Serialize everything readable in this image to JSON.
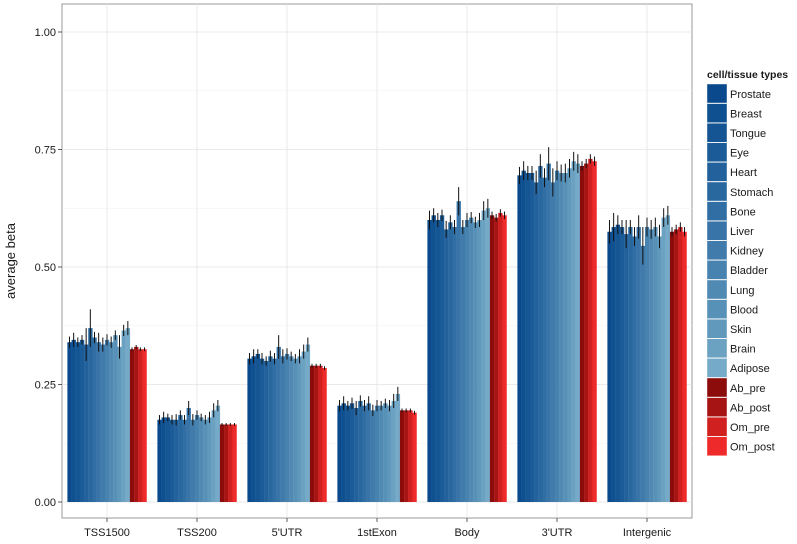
{
  "chart_data": {
    "type": "bar",
    "ylabel": "average beta",
    "xlabel": "",
    "ylim": [
      0,
      1.05
    ],
    "yticks": [
      0.0,
      0.25,
      0.5,
      0.75,
      1.0
    ],
    "ytick_labels": [
      "0.00",
      "0.25",
      "0.50",
      "0.75",
      "1.00"
    ],
    "grid": true,
    "legend": {
      "title": "cell/tissue types",
      "placement": "right"
    },
    "categories": [
      "TSS1500",
      "TSS200",
      "5'UTR",
      "1stExon",
      "Body",
      "3'UTR",
      "Intergenic"
    ],
    "series": [
      {
        "name": "Prostate",
        "color": "#0a4a8c",
        "values": [
          0.34,
          0.175,
          0.305,
          0.205,
          0.6,
          0.695,
          0.575
        ],
        "errors": [
          0.012,
          0.01,
          0.012,
          0.012,
          0.02,
          0.018,
          0.025
        ]
      },
      {
        "name": "Breast",
        "color": "#0f5090",
        "values": [
          0.345,
          0.18,
          0.31,
          0.21,
          0.61,
          0.705,
          0.585
        ],
        "errors": [
          0.015,
          0.012,
          0.015,
          0.015,
          0.015,
          0.02,
          0.03
        ]
      },
      {
        "name": "Tongue",
        "color": "#155593",
        "values": [
          0.34,
          0.18,
          0.315,
          0.205,
          0.6,
          0.7,
          0.59
        ],
        "errors": [
          0.01,
          0.008,
          0.01,
          0.01,
          0.015,
          0.015,
          0.02
        ]
      },
      {
        "name": "Eye",
        "color": "#1b5b97",
        "values": [
          0.345,
          0.175,
          0.305,
          0.21,
          0.61,
          0.7,
          0.585
        ],
        "errors": [
          0.01,
          0.01,
          0.012,
          0.012,
          0.012,
          0.015,
          0.015
        ]
      },
      {
        "name": "Heart",
        "color": "#22619b",
        "values": [
          0.335,
          0.175,
          0.3,
          0.2,
          0.58,
          0.68,
          0.57
        ],
        "errors": [
          0.035,
          0.012,
          0.01,
          0.015,
          0.018,
          0.025,
          0.03
        ]
      },
      {
        "name": "Stomach",
        "color": "#29679f",
        "values": [
          0.37,
          0.185,
          0.31,
          0.215,
          0.595,
          0.715,
          0.585
        ],
        "errors": [
          0.04,
          0.01,
          0.012,
          0.012,
          0.015,
          0.025,
          0.015
        ]
      },
      {
        "name": "Bone",
        "color": "#306ea3",
        "values": [
          0.35,
          0.175,
          0.305,
          0.205,
          0.585,
          0.69,
          0.565
        ],
        "errors": [
          0.012,
          0.01,
          0.012,
          0.012,
          0.015,
          0.02,
          0.02
        ]
      },
      {
        "name": "Liver",
        "color": "#3874a7",
        "values": [
          0.34,
          0.2,
          0.33,
          0.21,
          0.64,
          0.72,
          0.585
        ],
        "errors": [
          0.02,
          0.015,
          0.025,
          0.015,
          0.03,
          0.035,
          0.025
        ]
      },
      {
        "name": "Kidney",
        "color": "#407bab",
        "values": [
          0.335,
          0.175,
          0.31,
          0.195,
          0.585,
          0.68,
          0.545
        ],
        "errors": [
          0.015,
          0.012,
          0.015,
          0.012,
          0.015,
          0.03,
          0.04
        ]
      },
      {
        "name": "Bladder",
        "color": "#4882ae",
        "values": [
          0.345,
          0.185,
          0.315,
          0.205,
          0.6,
          0.705,
          0.585
        ],
        "errors": [
          0.012,
          0.01,
          0.012,
          0.012,
          0.015,
          0.02,
          0.02
        ]
      },
      {
        "name": "Lung",
        "color": "#5089b2",
        "values": [
          0.34,
          0.18,
          0.31,
          0.205,
          0.605,
          0.7,
          0.58
        ],
        "errors": [
          0.012,
          0.008,
          0.01,
          0.01,
          0.012,
          0.018,
          0.02
        ]
      },
      {
        "name": "Blood",
        "color": "#5891b7",
        "values": [
          0.355,
          0.175,
          0.305,
          0.21,
          0.595,
          0.7,
          0.585
        ],
        "errors": [
          0.01,
          0.01,
          0.01,
          0.01,
          0.012,
          0.02,
          0.02
        ]
      },
      {
        "name": "Skin",
        "color": "#6199bc",
        "values": [
          0.33,
          0.18,
          0.31,
          0.205,
          0.6,
          0.71,
          0.565
        ],
        "errors": [
          0.025,
          0.012,
          0.015,
          0.012,
          0.015,
          0.02,
          0.025
        ]
      },
      {
        "name": "Brain",
        "color": "#6ba2c2",
        "values": [
          0.365,
          0.195,
          0.32,
          0.215,
          0.62,
          0.725,
          0.605
        ],
        "errors": [
          0.012,
          0.015,
          0.015,
          0.015,
          0.02,
          0.02,
          0.02
        ]
      },
      {
        "name": "Adipose",
        "color": "#75aac8",
        "values": [
          0.37,
          0.205,
          0.335,
          0.23,
          0.625,
          0.72,
          0.61
        ],
        "errors": [
          0.015,
          0.012,
          0.015,
          0.015,
          0.02,
          0.02,
          0.02
        ]
      },
      {
        "name": "Ab_pre",
        "color": "#8c0c0c",
        "values": [
          0.325,
          0.165,
          0.29,
          0.195,
          0.61,
          0.715,
          0.575
        ],
        "errors": [
          0.004,
          0.003,
          0.004,
          0.004,
          0.008,
          0.01,
          0.01
        ]
      },
      {
        "name": "Ab_post",
        "color": "#a71414",
        "values": [
          0.33,
          0.165,
          0.29,
          0.195,
          0.605,
          0.72,
          0.58
        ],
        "errors": [
          0.004,
          0.003,
          0.004,
          0.004,
          0.008,
          0.01,
          0.01
        ]
      },
      {
        "name": "Om_pre",
        "color": "#d02020",
        "values": [
          0.325,
          0.165,
          0.29,
          0.195,
          0.615,
          0.73,
          0.585
        ],
        "errors": [
          0.004,
          0.003,
          0.004,
          0.004,
          0.008,
          0.01,
          0.01
        ]
      },
      {
        "name": "Om_post",
        "color": "#ee2a2a",
        "values": [
          0.325,
          0.165,
          0.285,
          0.19,
          0.61,
          0.725,
          0.575
        ],
        "errors": [
          0.004,
          0.003,
          0.004,
          0.004,
          0.008,
          0.01,
          0.01
        ]
      }
    ]
  }
}
